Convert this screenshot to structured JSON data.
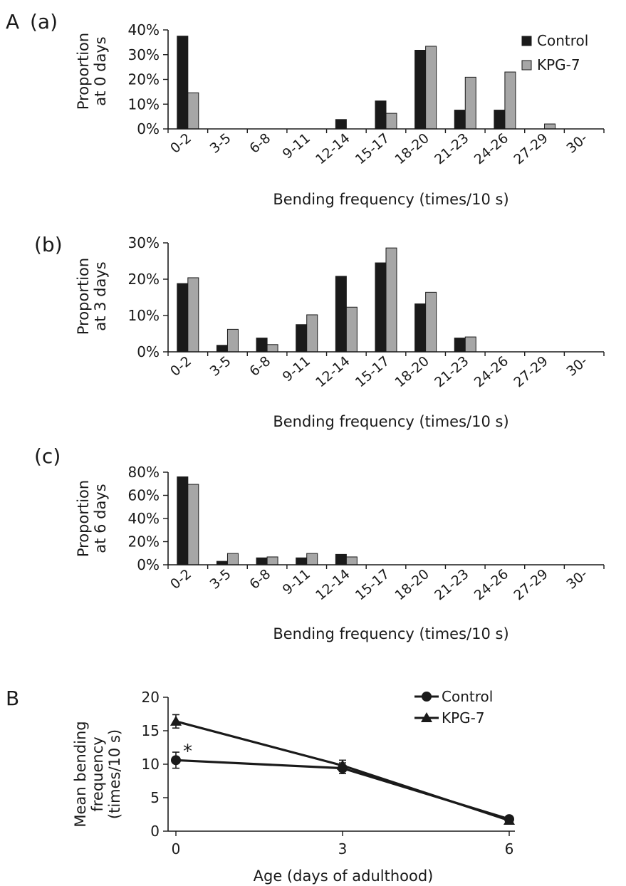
{
  "panel_labels": {
    "A": "A",
    "a": "(a)",
    "b": "(b)",
    "c": "(c)",
    "B": "B"
  },
  "colors": {
    "Control": "#1a1a1a",
    "KPG-7": "#a6a6a6"
  },
  "chart_data": [
    {
      "type": "bar",
      "panel": "(a)",
      "categories": [
        "0-2",
        "3-5",
        "6-8",
        "9-11",
        "12-14",
        "15-17",
        "18-20",
        "21-23",
        "24-26",
        "27-29",
        "30-"
      ],
      "series": [
        {
          "name": "Control",
          "values": [
            37.5,
            0,
            0,
            0,
            3.8,
            11.3,
            31.8,
            7.6,
            7.6,
            0,
            0
          ]
        },
        {
          "name": "KPG-7",
          "values": [
            14.6,
            0,
            0,
            0,
            0,
            6.3,
            33.4,
            20.9,
            23.0,
            2.0,
            0
          ]
        }
      ],
      "xlabel": "Bending frequency (times/10 s)",
      "ylabel": [
        "Proportion",
        "at 0 days"
      ],
      "ylim": [
        0,
        40
      ],
      "yticks": [
        "0%",
        "10%",
        "20%",
        "30%",
        "40%"
      ],
      "legend": [
        "Control",
        "KPG-7"
      ],
      "legend_position": "top-right"
    },
    {
      "type": "bar",
      "panel": "(b)",
      "categories": [
        "0-2",
        "3-5",
        "6-8",
        "9-11",
        "12-14",
        "15-17",
        "18-20",
        "21-23",
        "24-26",
        "27-29",
        "30-"
      ],
      "series": [
        {
          "name": "Control",
          "values": [
            18.8,
            1.8,
            3.8,
            7.5,
            20.8,
            24.5,
            13.2,
            3.8,
            0,
            0,
            0
          ]
        },
        {
          "name": "KPG-7",
          "values": [
            20.4,
            6.2,
            2.0,
            10.2,
            12.3,
            28.6,
            16.4,
            4.1,
            0,
            0,
            0
          ]
        }
      ],
      "xlabel": "Bending frequency (times/10 s)",
      "ylabel": [
        "Proportion",
        "at 3 days"
      ],
      "ylim": [
        0,
        30
      ],
      "yticks": [
        "0%",
        "10%",
        "20%",
        "30%"
      ]
    },
    {
      "type": "bar",
      "panel": "(c)",
      "categories": [
        "0-2",
        "3-5",
        "6-8",
        "9-11",
        "12-14",
        "15-17",
        "18-20",
        "21-23",
        "24-26",
        "27-29",
        "30-"
      ],
      "series": [
        {
          "name": "Control",
          "values": [
            76,
            3,
            6,
            6,
            9,
            0,
            0,
            0,
            0,
            0,
            0
          ]
        },
        {
          "name": "KPG-7",
          "values": [
            69.5,
            9.8,
            6.8,
            9.8,
            6.8,
            0,
            0,
            0,
            0,
            0,
            0
          ]
        }
      ],
      "xlabel": "Bending frequency (times/10 s)",
      "ylabel": [
        "Proportion",
        "at 6 days"
      ],
      "ylim": [
        0,
        80
      ],
      "yticks": [
        "0%",
        "20%",
        "40%",
        "60%",
        "80%"
      ]
    },
    {
      "type": "line",
      "panel": "B",
      "x": [
        0,
        3,
        6
      ],
      "series": [
        {
          "name": "Control",
          "values": [
            10.6,
            9.4,
            1.8
          ],
          "err": [
            1.2,
            0.8,
            0.3
          ],
          "marker": "circle"
        },
        {
          "name": "KPG-7",
          "values": [
            16.4,
            9.8,
            1.6
          ],
          "err": [
            1.0,
            0.8,
            0.3
          ],
          "marker": "triangle"
        }
      ],
      "xlabel": "Age (days of adulthood)",
      "ylabel": [
        "Mean bending",
        "frequency",
        "(times/10 s)"
      ],
      "xticks": [
        "0",
        "3",
        "6"
      ],
      "yticks": [
        "0",
        "5",
        "10",
        "15",
        "20"
      ],
      "xlim": [
        0,
        6
      ],
      "ylim": [
        0,
        20
      ],
      "annotation": "*",
      "legend": [
        "Control",
        "KPG-7"
      ],
      "legend_position": "top-right"
    }
  ]
}
